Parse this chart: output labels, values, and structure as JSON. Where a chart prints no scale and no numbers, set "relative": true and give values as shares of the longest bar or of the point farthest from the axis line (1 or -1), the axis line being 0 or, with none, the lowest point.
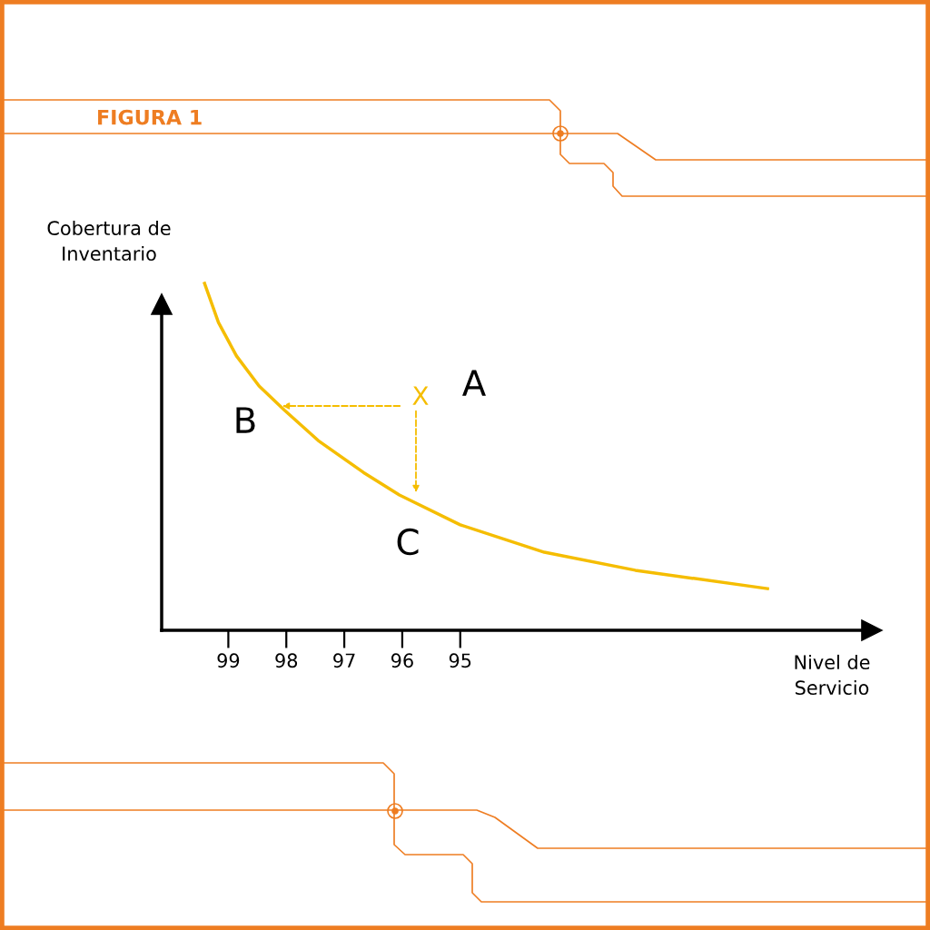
{
  "chart_data": {
    "type": "line",
    "title": "FIGURA 1",
    "xlabel": "Nivel de\nServicio",
    "ylabel": "Cobertura de\nInventario",
    "relative": true,
    "xlim": [
      100.15,
      87.9
    ],
    "xticks": [
      99,
      98,
      97,
      96,
      95
    ],
    "tick_labels": "x",
    "grid": false,
    "legend": false,
    "marker": "none",
    "line_style": "solid",
    "series": [
      {
        "color": "#f5bd00",
        "x": [
          99.41,
          99.17,
          98.86,
          98.47,
          98.03,
          97.45,
          96.67,
          96.05,
          95.0,
          93.55,
          91.98,
          89.7
        ],
        "values": [
          1.0,
          0.887,
          0.791,
          0.704,
          0.634,
          0.547,
          0.455,
          0.39,
          0.304,
          0.225,
          0.173,
          0.12
        ]
      }
    ],
    "annotations": [
      "X",
      "A",
      "B",
      "C"
    ]
  }
}
